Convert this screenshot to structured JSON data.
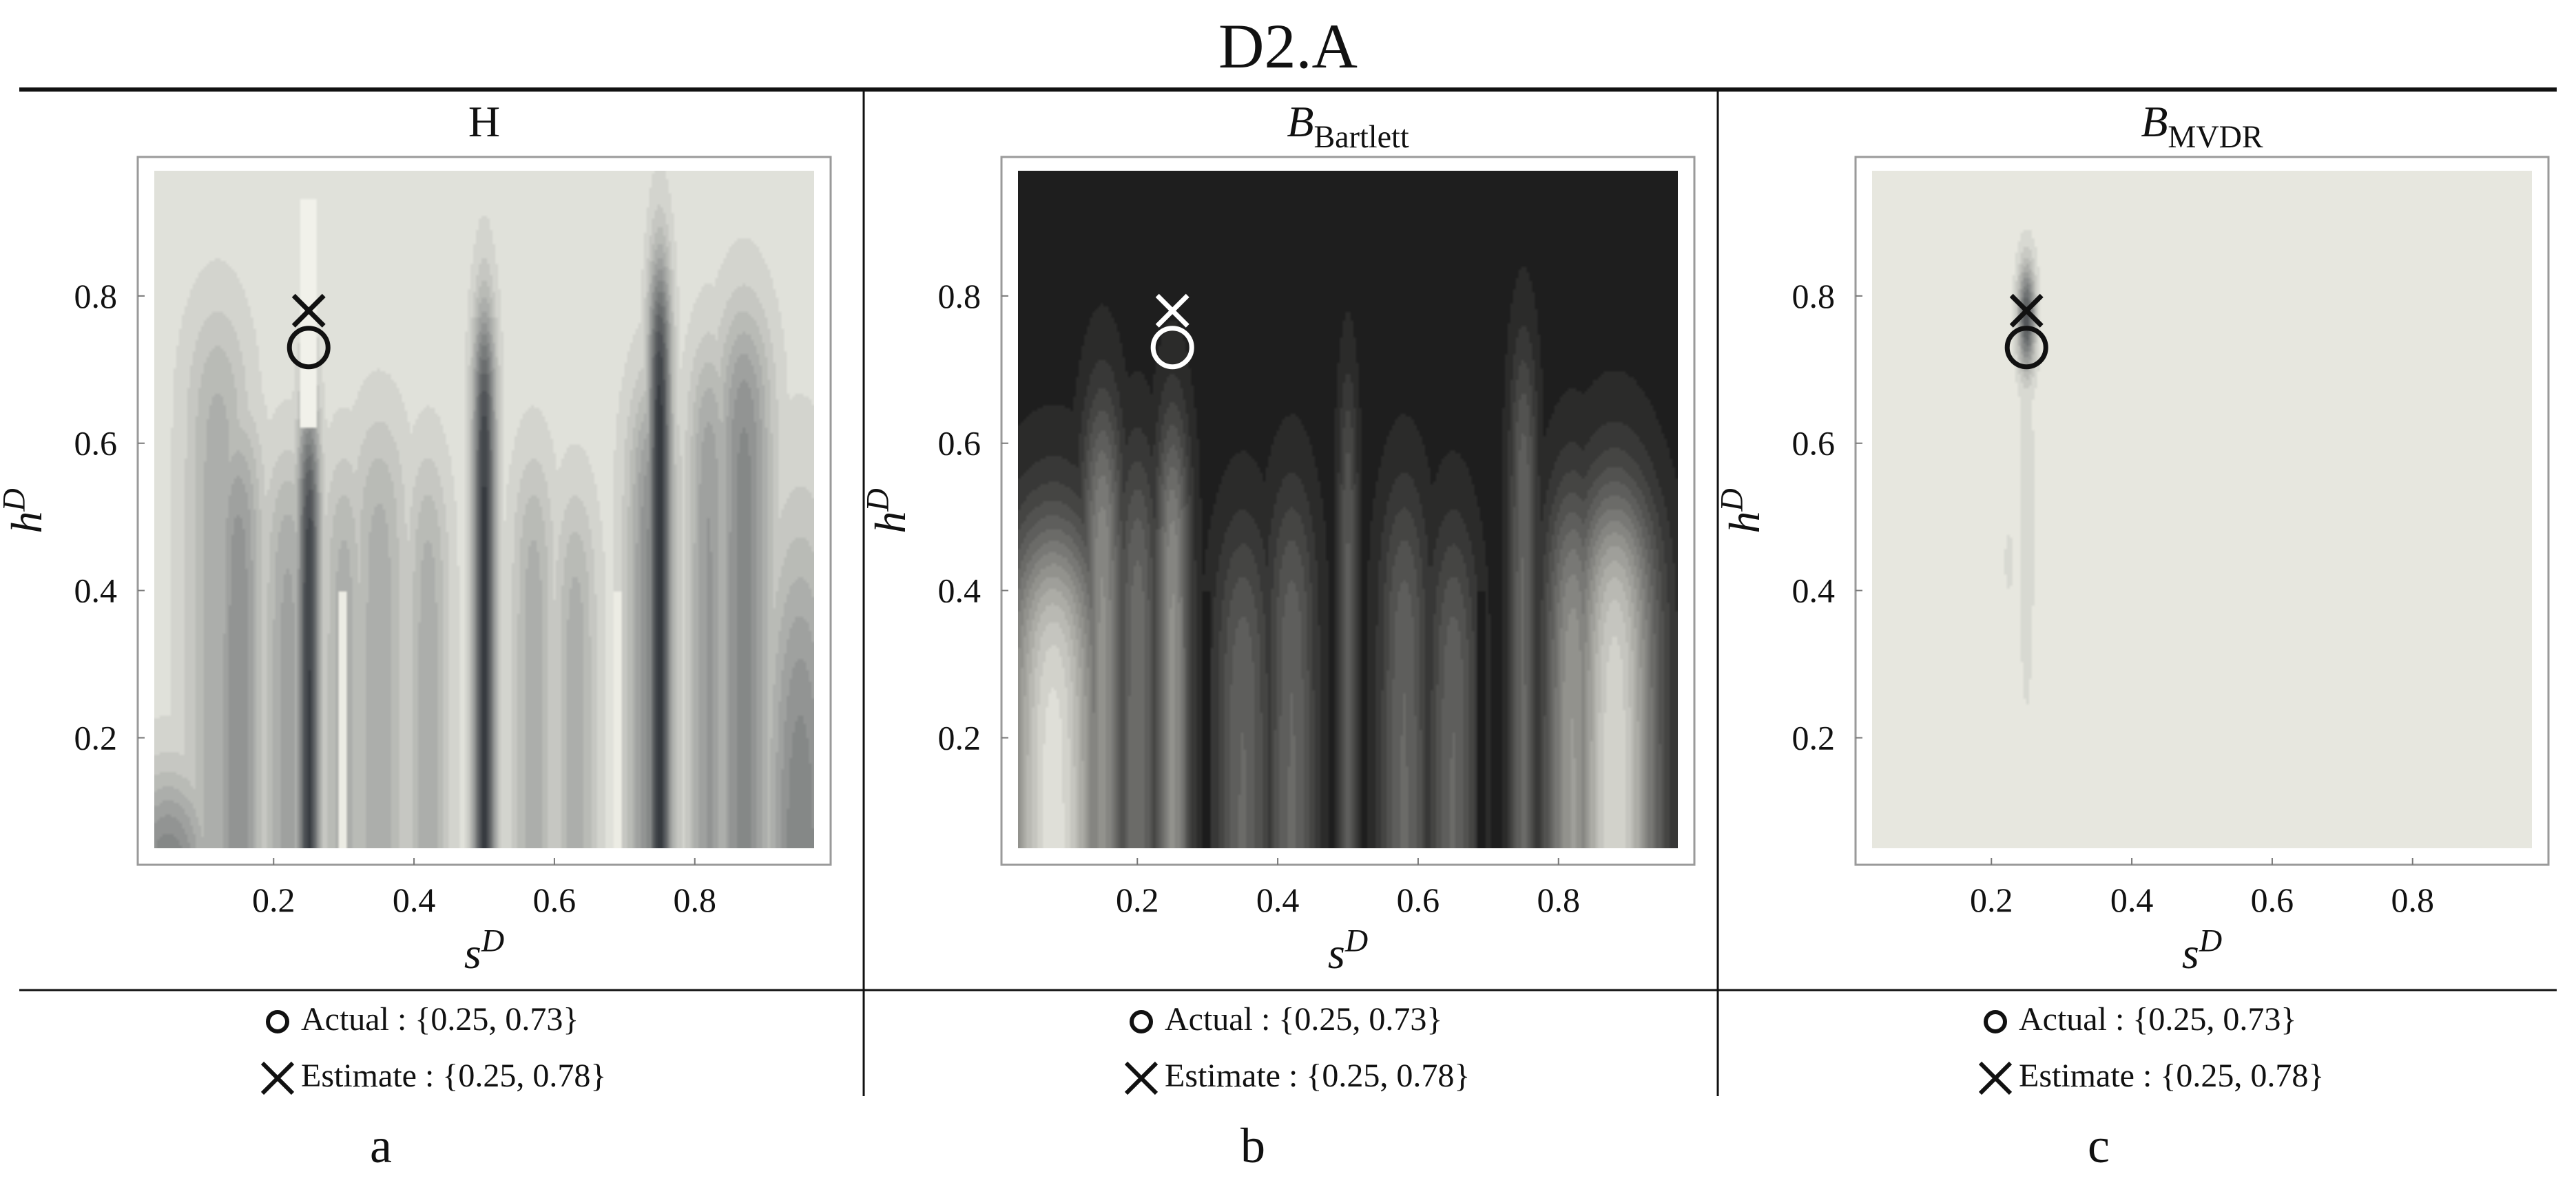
{
  "figure": {
    "title": "D2.A"
  },
  "chart_data": [
    {
      "type": "heatmap",
      "panel_letter": "a",
      "title": {
        "main": "H",
        "sub": ""
      },
      "xlabel": {
        "main": "s",
        "sup": "D"
      },
      "ylabel": {
        "main": "h",
        "sup": "D"
      },
      "xlim": [
        0.03,
        0.97
      ],
      "ylim": [
        0.05,
        0.97
      ],
      "xticks": [
        0.2,
        0.4,
        0.6,
        0.8
      ],
      "yticks": [
        0.2,
        0.4,
        0.6,
        0.8
      ],
      "grid": false,
      "colors": {
        "background": "#e0e1da",
        "dark": "#2a2e34",
        "marker": "#111111"
      },
      "features": [
        {
          "x": 0.12,
          "amp": 0.3,
          "height": 0.75,
          "width": 0.045
        },
        {
          "x": 0.15,
          "amp": 0.45,
          "height": 0.6,
          "width": 0.035
        },
        {
          "x": 0.22,
          "amp": 0.35,
          "height": 0.55,
          "width": 0.035
        },
        {
          "x": 0.25,
          "amp": 0.9,
          "height": 0.62,
          "width": 0.016
        },
        {
          "x": 0.3,
          "amp": 0.3,
          "height": 0.55,
          "width": 0.03
        },
        {
          "x": 0.35,
          "amp": 0.3,
          "height": 0.6,
          "width": 0.04
        },
        {
          "x": 0.42,
          "amp": 0.3,
          "height": 0.55,
          "width": 0.03
        },
        {
          "x": 0.5,
          "amp": 0.92,
          "height": 0.75,
          "width": 0.016
        },
        {
          "x": 0.57,
          "amp": 0.3,
          "height": 0.55,
          "width": 0.03
        },
        {
          "x": 0.63,
          "amp": 0.3,
          "height": 0.5,
          "width": 0.03
        },
        {
          "x": 0.74,
          "amp": 0.5,
          "height": 0.65,
          "width": 0.035
        },
        {
          "x": 0.75,
          "amp": 0.95,
          "height": 0.82,
          "width": 0.016
        },
        {
          "x": 0.82,
          "amp": 0.4,
          "height": 0.7,
          "width": 0.03
        },
        {
          "x": 0.87,
          "amp": 0.5,
          "height": 0.75,
          "width": 0.04
        }
      ],
      "actual": [
        0.25,
        0.73
      ],
      "estimate": [
        0.25,
        0.78
      ],
      "legend": {
        "actual_label": "Actual",
        "actual_value": "{0.25, 0.73}",
        "estimate_label": "Estimate",
        "estimate_value": "{0.25, 0.78}"
      }
    },
    {
      "type": "heatmap",
      "panel_letter": "b",
      "title": {
        "main": "B",
        "sub": "Bartlett"
      },
      "xlabel": {
        "main": "s",
        "sup": "D"
      },
      "ylabel": {
        "main": "h",
        "sup": "D"
      },
      "xlim": [
        0.03,
        0.97
      ],
      "ylim": [
        0.05,
        0.97
      ],
      "xticks": [
        0.2,
        0.4,
        0.6,
        0.8
      ],
      "yticks": [
        0.2,
        0.4,
        0.6,
        0.8
      ],
      "grid": false,
      "colors": {
        "background": "#1e1e1e",
        "bright": "#ecece4",
        "marker": "#ffffff"
      },
      "features": [
        {
          "x": 0.08,
          "amp": 0.95,
          "height": 0.45,
          "width": 0.07
        },
        {
          "x": 0.15,
          "amp": 0.55,
          "height": 0.62,
          "width": 0.03
        },
        {
          "x": 0.2,
          "amp": 0.4,
          "height": 0.55,
          "width": 0.03
        },
        {
          "x": 0.25,
          "amp": 0.55,
          "height": 0.6,
          "width": 0.025
        },
        {
          "x": 0.35,
          "amp": 0.35,
          "height": 0.45,
          "width": 0.04
        },
        {
          "x": 0.42,
          "amp": 0.35,
          "height": 0.5,
          "width": 0.035
        },
        {
          "x": 0.5,
          "amp": 0.3,
          "height": 0.65,
          "width": 0.014
        },
        {
          "x": 0.58,
          "amp": 0.35,
          "height": 0.5,
          "width": 0.035
        },
        {
          "x": 0.65,
          "amp": 0.35,
          "height": 0.45,
          "width": 0.035
        },
        {
          "x": 0.75,
          "amp": 0.35,
          "height": 0.7,
          "width": 0.02
        },
        {
          "x": 0.82,
          "amp": 0.6,
          "height": 0.5,
          "width": 0.04
        },
        {
          "x": 0.88,
          "amp": 0.9,
          "height": 0.5,
          "width": 0.06
        }
      ],
      "actual": [
        0.25,
        0.73
      ],
      "estimate": [
        0.25,
        0.78
      ],
      "legend": {
        "actual_label": "Actual",
        "actual_value": "{0.25, 0.73}",
        "estimate_label": "Estimate",
        "estimate_value": "{0.25, 0.78}"
      }
    },
    {
      "type": "heatmap",
      "panel_letter": "c",
      "title": {
        "main": "B",
        "sub": "MVDR"
      },
      "xlabel": {
        "main": "s",
        "sup": "D"
      },
      "ylabel": {
        "main": "h",
        "sup": "D"
      },
      "xlim": [
        0.03,
        0.97
      ],
      "ylim": [
        0.05,
        0.97
      ],
      "xticks": [
        0.2,
        0.4,
        0.6,
        0.8
      ],
      "yticks": [
        0.2,
        0.4,
        0.6,
        0.8
      ],
      "grid": false,
      "colors": {
        "background": "#e7e7df",
        "dark": "#35393e",
        "marker": "#111111"
      },
      "peak": [
        0.25,
        0.77
      ],
      "actual": [
        0.25,
        0.73
      ],
      "estimate": [
        0.25,
        0.78
      ],
      "legend": {
        "actual_label": "Actual",
        "actual_value": "{0.25, 0.73}",
        "estimate_label": "Estimate",
        "estimate_value": "{0.25, 0.78}"
      }
    }
  ]
}
